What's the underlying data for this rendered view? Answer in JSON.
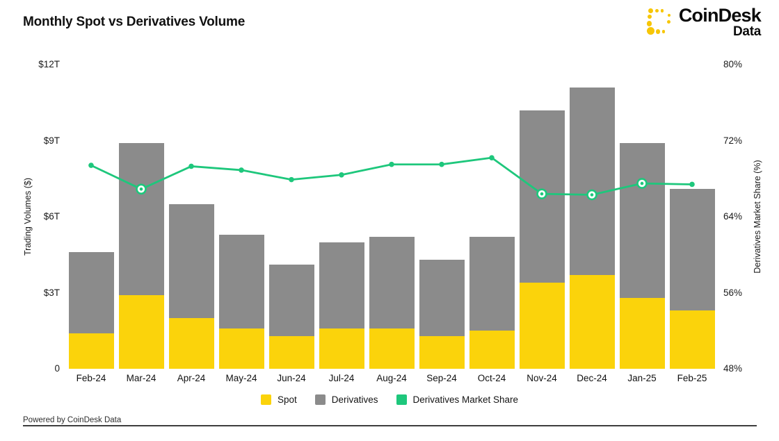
{
  "header": {
    "title": "Monthly Spot vs Derivatives Volume",
    "brand": {
      "name": "CoinDesk",
      "subtitle": "Data",
      "color": "#F7C606"
    }
  },
  "chart_data": {
    "type": "bar",
    "subtype": "stacked bars with overlay line",
    "title": "Monthly Spot vs Derivatives Volume",
    "categories": [
      "Feb-24",
      "Mar-24",
      "Apr-24",
      "May-24",
      "Jun-24",
      "Jul-24",
      "Aug-24",
      "Sep-24",
      "Oct-24",
      "Nov-24",
      "Dec-24",
      "Jan-25",
      "Feb-25"
    ],
    "series": [
      {
        "name": "Spot",
        "type": "bar",
        "stack": true,
        "color": "#FBD30B",
        "unit": "$T",
        "values": [
          1.4,
          2.9,
          2.0,
          1.6,
          1.3,
          1.6,
          1.6,
          1.3,
          1.5,
          3.4,
          3.7,
          2.8,
          2.3
        ]
      },
      {
        "name": "Derivatives",
        "type": "bar",
        "stack": true,
        "color": "#8B8B8B",
        "unit": "$T",
        "values": [
          3.2,
          6.0,
          4.5,
          3.7,
          2.8,
          3.4,
          3.6,
          3.0,
          3.7,
          6.8,
          7.4,
          6.1,
          4.8
        ]
      },
      {
        "name": "Derivatives Market Share",
        "type": "line",
        "axis": "right",
        "color": "#1EC77C",
        "unit": "%",
        "values": [
          69.4,
          66.9,
          69.3,
          68.9,
          67.9,
          68.4,
          69.5,
          69.5,
          70.2,
          66.4,
          66.3,
          67.5,
          67.4
        ],
        "highlighted_indices": [
          1,
          9,
          10,
          11
        ]
      }
    ],
    "left_axis": {
      "label": "Trading Volumes ($)",
      "range": [
        0,
        12
      ],
      "tick_values": [
        0,
        3,
        6,
        9,
        12
      ],
      "tick_labels": [
        "0",
        "$3T",
        "$6T",
        "$9T",
        "$12T"
      ]
    },
    "right_axis": {
      "label": "Derivatives Market Share (%)",
      "range": [
        48,
        80
      ],
      "tick_values": [
        48,
        56,
        64,
        72,
        80
      ],
      "tick_labels": [
        "48%",
        "56%",
        "64%",
        "72%",
        "80%"
      ]
    },
    "grid": false,
    "legend_position": "bottom"
  },
  "legend": {
    "items": [
      {
        "label": "Spot",
        "color": "#FBD30B"
      },
      {
        "label": "Derivatives",
        "color": "#8B8B8B"
      },
      {
        "label": "Derivatives Market Share",
        "color": "#1EC77C"
      }
    ]
  },
  "footer": {
    "text": "Powered by CoinDesk Data"
  }
}
